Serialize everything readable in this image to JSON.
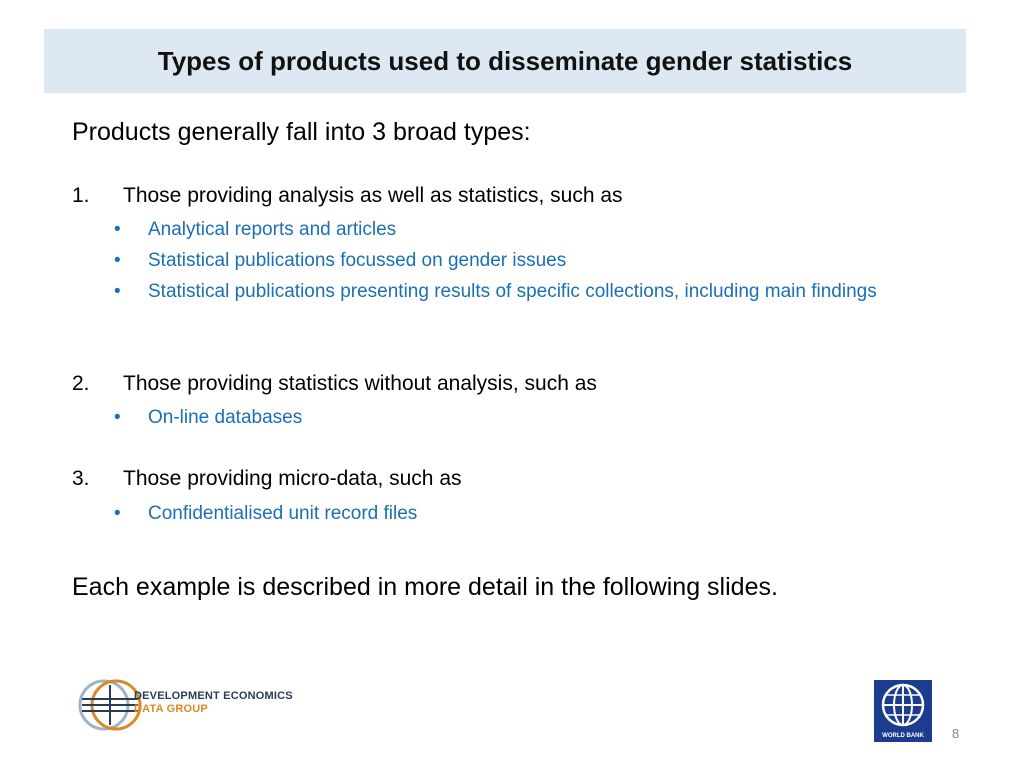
{
  "slide": {
    "title": "Types of products used to disseminate gender statistics",
    "intro": "Products generally fall into 3 broad types:",
    "items": [
      {
        "number": "1.",
        "text": "Those providing analysis as well as statistics, such as",
        "subitems": [
          "Analytical reports and articles",
          "Statistical publications focussed on gender issues",
          "Statistical publications presenting results of specific collections, including main findings"
        ]
      },
      {
        "number": "2.",
        "text": "Those providing statistics without analysis, such as",
        "subitems": [
          "On-line databases"
        ]
      },
      {
        "number": "3.",
        "text": "Those providing micro-data, such as",
        "subitems": [
          "Confidentialised unit record files"
        ]
      }
    ],
    "bullet": "•",
    "closing": "Each example is described in more detail in the following slides.",
    "page_number": "8"
  },
  "footer": {
    "left_logo": {
      "line1": "DEVELOPMENT ECONOMICS",
      "line2": "DATA GROUP"
    },
    "right_logo": {
      "text": "WORLD BANK"
    }
  },
  "colors": {
    "title_bg": "#dde8f3",
    "subitem_text": "#1a6fb5",
    "logo_navy": "#2b3c5a",
    "logo_orange": "#d98a26",
    "worldbank_blue": "#1c3d8f"
  }
}
